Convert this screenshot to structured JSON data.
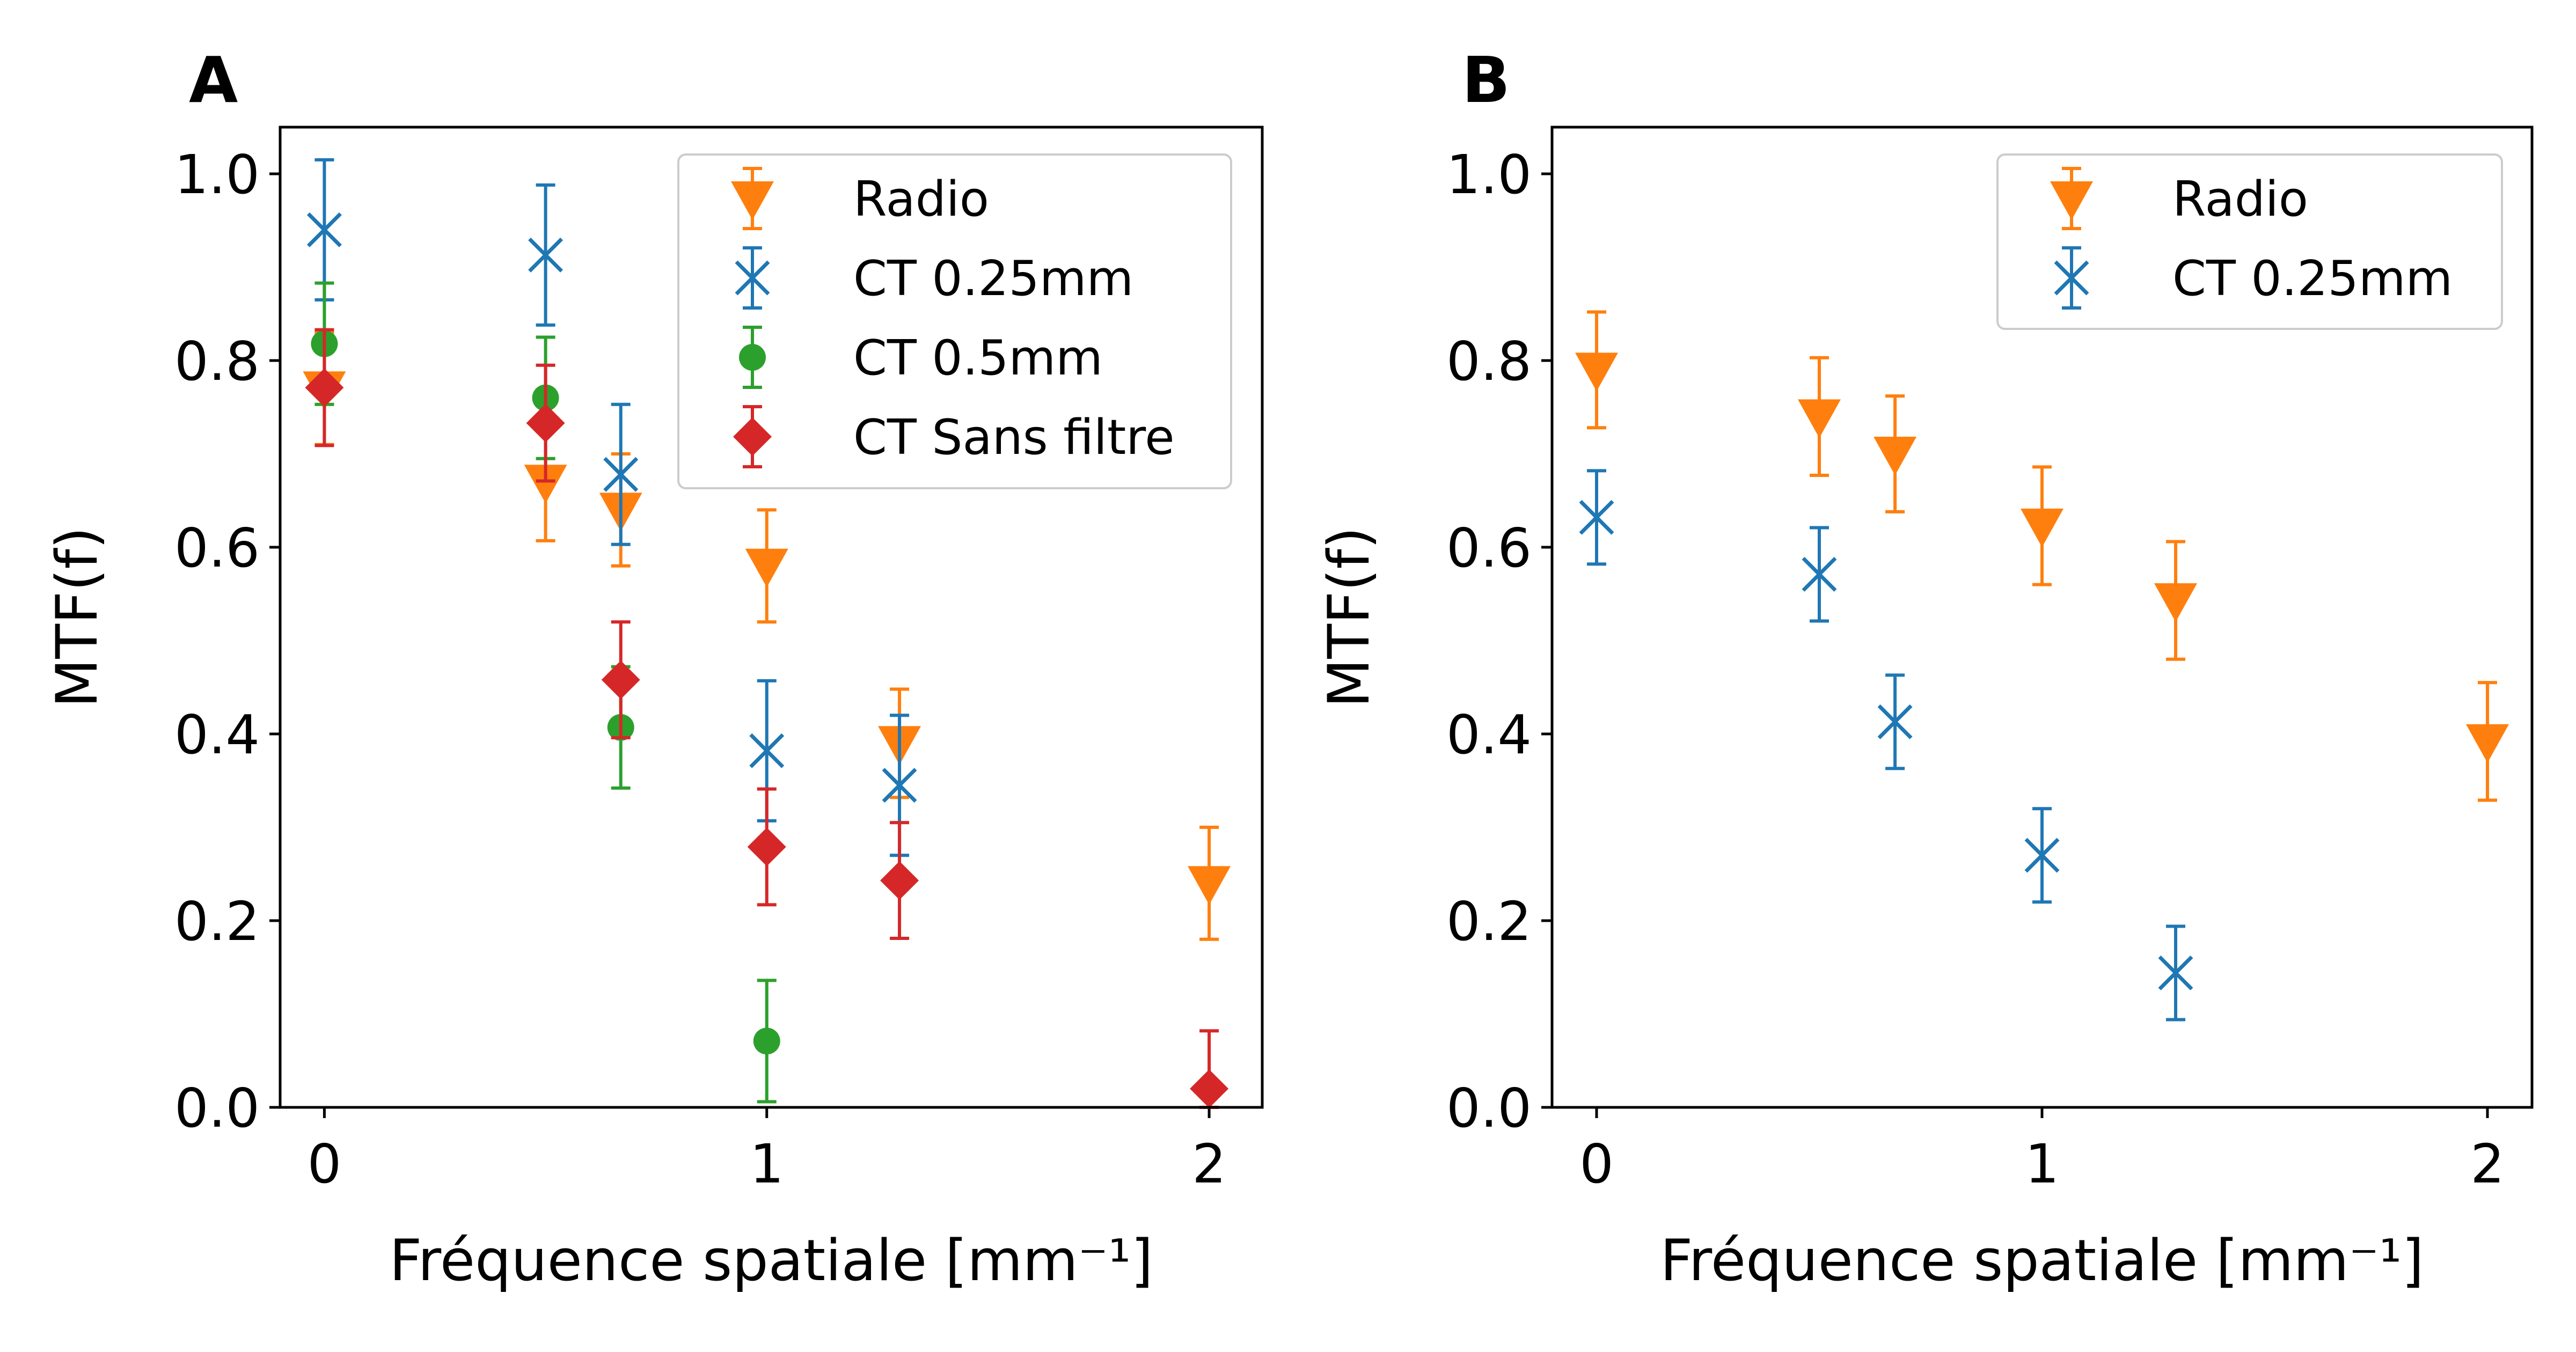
{
  "chart_data": [
    {
      "panel": "A",
      "type": "scatter",
      "xlabel": "Fréquence spatiale [mm⁻¹]",
      "ylabel": "MTF(f)",
      "xlim": [
        -0.1,
        2.12
      ],
      "ylim": [
        0,
        1.05
      ],
      "x_ticks": [
        "0",
        "1",
        "2"
      ],
      "y_ticks": [
        "0.0",
        "0.2",
        "0.4",
        "0.6",
        "0.8",
        "1.0"
      ],
      "legend_position": "upper right",
      "series": [
        {
          "name": "Radio",
          "marker": "triangle-down",
          "color": "#ff7f0e",
          "x": [
            0.0,
            0.5,
            0.67,
            1.0,
            1.3,
            2.0
          ],
          "y": [
            0.77,
            0.67,
            0.64,
            0.58,
            0.39,
            0.24
          ],
          "err": [
            0.06,
            0.063,
            0.06,
            0.06,
            0.058,
            0.06
          ]
        },
        {
          "name": "CT 0.25mm",
          "marker": "x",
          "color": "#1f77b4",
          "x": [
            0.0,
            0.5,
            0.67,
            1.0,
            1.3
          ],
          "y": [
            0.94,
            0.913,
            0.678,
            0.382,
            0.345
          ],
          "err": [
            0.075,
            0.075,
            0.075,
            0.075,
            0.075
          ]
        },
        {
          "name": "CT 0.5mm",
          "marker": "circle",
          "color": "#2ca02c",
          "x": [
            0.0,
            0.5,
            0.67,
            1.0
          ],
          "y": [
            0.818,
            0.76,
            0.407,
            0.071
          ],
          "err": [
            0.065,
            0.065,
            0.065,
            0.065
          ]
        },
        {
          "name": "CT Sans filtre",
          "marker": "diamond",
          "color": "#d62728",
          "x": [
            0.0,
            0.5,
            0.67,
            1.0,
            1.3,
            2.0
          ],
          "y": [
            0.771,
            0.733,
            0.458,
            0.279,
            0.243,
            0.02
          ],
          "err": [
            0.062,
            0.062,
            0.062,
            0.062,
            0.062,
            0.062
          ]
        }
      ]
    },
    {
      "panel": "B",
      "type": "scatter",
      "xlabel": "Fréquence spatiale [mm⁻¹]",
      "ylabel": "MTF(f)",
      "xlim": [
        -0.1,
        2.1
      ],
      "ylim": [
        0,
        1.05
      ],
      "x_ticks": [
        "0",
        "1",
        "2"
      ],
      "y_ticks": [
        "0.0",
        "0.2",
        "0.4",
        "0.6",
        "0.8",
        "1.0"
      ],
      "legend_position": "upper right",
      "series": [
        {
          "name": "Radio",
          "marker": "triangle-down",
          "color": "#ff7f0e",
          "x": [
            0.0,
            0.5,
            0.67,
            1.0,
            1.3,
            2.0
          ],
          "y": [
            0.79,
            0.74,
            0.7,
            0.623,
            0.543,
            0.392
          ],
          "err": [
            0.062,
            0.063,
            0.062,
            0.063,
            0.063,
            0.063
          ]
        },
        {
          "name": "CT 0.25mm",
          "marker": "x",
          "color": "#1f77b4",
          "x": [
            0.0,
            0.5,
            0.67,
            1.0,
            1.3
          ],
          "y": [
            0.632,
            0.571,
            0.413,
            0.27,
            0.144
          ],
          "err": [
            0.05,
            0.05,
            0.05,
            0.05,
            0.05
          ]
        }
      ]
    }
  ]
}
